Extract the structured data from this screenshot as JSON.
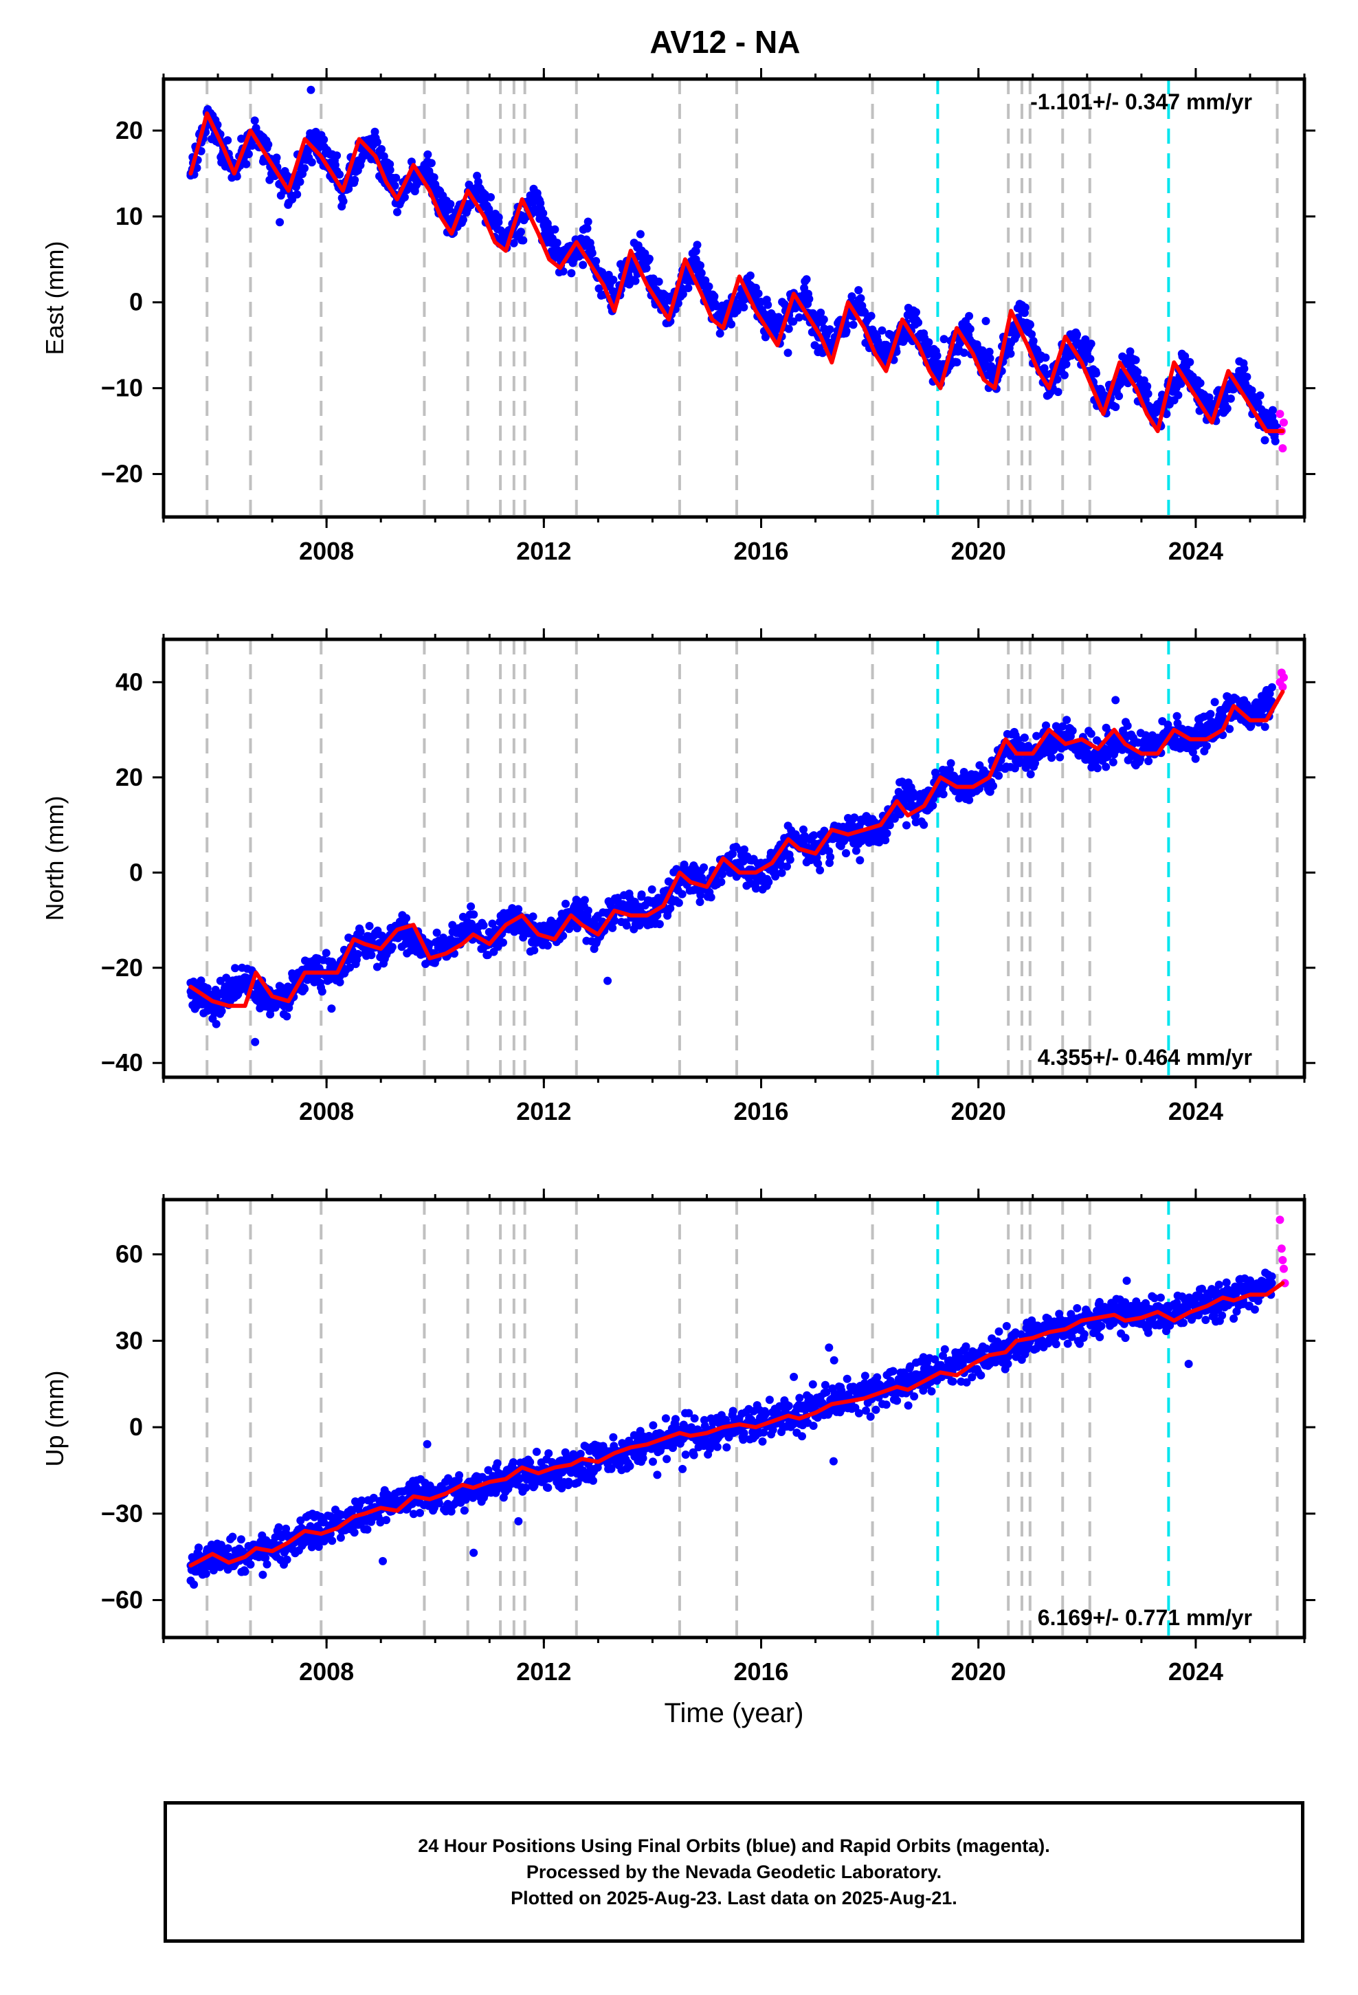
{
  "figure": {
    "title": "AV12 - NA",
    "xlabel": "Time (year)",
    "caption": [
      "24 Hour Positions Using Final Orbits (blue) and Rapid Orbits (magenta).",
      "Processed by the Nevada Geodetic Laboratory.",
      "Plotted on 2025-Aug-23. Last data on 2025-Aug-21."
    ]
  },
  "colors": {
    "final_orbits": "#0000ff",
    "rapid_orbits": "#ff00ff",
    "model_fit": "#ff0000",
    "event_line": "#c0c0c0",
    "equipment_line": "#00e5ee"
  },
  "chart_data": [
    {
      "type": "scatter",
      "ylabel": "East (mm)",
      "xlim": [
        2005.0,
        2026.0
      ],
      "ylim": [
        -25,
        26
      ],
      "xticks": [
        2008,
        2012,
        2016,
        2020,
        2024
      ],
      "yticks": [
        -20,
        -10,
        0,
        10,
        20
      ],
      "ytick_labels": [
        "−20",
        "−10",
        "0",
        "10",
        "20"
      ],
      "rate_label": "-1.101+/- 0.347 mm/yr",
      "rate_position": "top-right",
      "gray_event_lines": [
        2005.8,
        2006.6,
        2007.9,
        2009.8,
        2010.6,
        2011.2,
        2011.45,
        2011.65,
        2012.6,
        2014.5,
        2015.55,
        2018.05,
        2020.55,
        2020.8,
        2020.95,
        2021.55,
        2022.05,
        2025.5
      ],
      "cyan_event_lines": [
        2019.25,
        2023.5
      ],
      "series": [
        {
          "name": "Final Orbits (blue)",
          "x": [
            2005.5,
            2005.7,
            2005.8,
            2006.1,
            2006.3,
            2006.7,
            2006.9,
            2007.3,
            2007.8,
            2008.1,
            2008.3,
            2008.8,
            2009.1,
            2009.3,
            2009.8,
            2010.0,
            2010.3,
            2010.8,
            2011.0,
            2011.3,
            2011.8,
            2012.0,
            2012.3,
            2012.8,
            2013.0,
            2013.3,
            2013.8,
            2014.0,
            2014.3,
            2014.8,
            2015.0,
            2015.3,
            2015.8,
            2016.0,
            2016.3,
            2016.8,
            2017.0,
            2017.3,
            2017.8,
            2018.0,
            2018.3,
            2018.8,
            2019.0,
            2019.3,
            2019.8,
            2020.0,
            2020.3,
            2020.8,
            2021.0,
            2021.3,
            2021.8,
            2022.0,
            2022.3,
            2022.8,
            2023.0,
            2023.3,
            2023.8,
            2024.0,
            2024.3,
            2024.8,
            2025.0,
            2025.3,
            2025.5
          ],
          "y": [
            15,
            19,
            22,
            18,
            15,
            20,
            17,
            13,
            19,
            16,
            13,
            19,
            15,
            12,
            16,
            13,
            9,
            13,
            10,
            7,
            12,
            9,
            5,
            7,
            3,
            1,
            6,
            2,
            -1,
            5,
            1,
            -2,
            2,
            -1,
            -3,
            1,
            -3,
            -5,
            0,
            -4,
            -6,
            -2,
            -5,
            -8,
            -3,
            -6,
            -9,
            -1,
            -5,
            -10,
            -4,
            -6,
            -12,
            -7,
            -10,
            -14,
            -7,
            -10,
            -13,
            -8,
            -11,
            -14,
            -15
          ]
        },
        {
          "name": "Rapid Orbits (magenta)",
          "x": [
            2025.55,
            2025.58,
            2025.6,
            2025.62
          ],
          "y": [
            -13,
            -15,
            -17,
            -14
          ]
        },
        {
          "name": "Model fit",
          "x": [
            2005.5,
            2005.8,
            2006.1,
            2006.3,
            2006.6,
            2006.9,
            2007.1,
            2007.3,
            2007.6,
            2007.9,
            2008.1,
            2008.3,
            2008.6,
            2008.9,
            2009.1,
            2009.3,
            2009.6,
            2009.9,
            2010.1,
            2010.3,
            2010.6,
            2010.9,
            2011.1,
            2011.3,
            2011.6,
            2011.9,
            2012.1,
            2012.3,
            2012.6,
            2012.9,
            2013.1,
            2013.3,
            2013.6,
            2013.9,
            2014.1,
            2014.3,
            2014.6,
            2014.9,
            2015.1,
            2015.3,
            2015.6,
            2015.9,
            2016.1,
            2016.3,
            2016.6,
            2016.9,
            2017.1,
            2017.3,
            2017.6,
            2017.9,
            2018.1,
            2018.3,
            2018.6,
            2018.9,
            2019.1,
            2019.3,
            2019.6,
            2019.9,
            2020.1,
            2020.3,
            2020.6,
            2020.9,
            2021.1,
            2021.3,
            2021.6,
            2021.9,
            2022.1,
            2022.3,
            2022.6,
            2022.9,
            2023.1,
            2023.3,
            2023.6,
            2023.9,
            2024.1,
            2024.3,
            2024.6,
            2024.9,
            2025.1,
            2025.3,
            2025.6
          ],
          "y": [
            15,
            22,
            18,
            15,
            20,
            17,
            15,
            13,
            19,
            17,
            15,
            13,
            19,
            17,
            14,
            12,
            16,
            13,
            10,
            8,
            13,
            10,
            7,
            6,
            12,
            8,
            5,
            4,
            7,
            4,
            2,
            -1,
            6,
            2,
            0,
            -2,
            5,
            1,
            -2,
            -3,
            3,
            -1,
            -3,
            -5,
            1,
            -2,
            -4,
            -7,
            0,
            -3,
            -6,
            -8,
            -2,
            -5,
            -8,
            -10,
            -3,
            -6,
            -9,
            -10,
            -1,
            -5,
            -8,
            -10,
            -4,
            -7,
            -10,
            -13,
            -7,
            -10,
            -13,
            -15,
            -7,
            -10,
            -12,
            -14,
            -8,
            -11,
            -13,
            -15,
            -15
          ]
        }
      ]
    },
    {
      "type": "scatter",
      "ylabel": "North (mm)",
      "xlim": [
        2005.0,
        2026.0
      ],
      "ylim": [
        -43,
        49
      ],
      "xticks": [
        2008,
        2012,
        2016,
        2020,
        2024
      ],
      "yticks": [
        -40,
        -20,
        0,
        20,
        40
      ],
      "ytick_labels": [
        "−40",
        "−20",
        "0",
        "20",
        "40"
      ],
      "rate_label": "4.355+/- 0.464 mm/yr",
      "rate_position": "bottom-right",
      "gray_event_lines": [
        2005.8,
        2006.6,
        2007.9,
        2009.8,
        2010.6,
        2011.2,
        2011.45,
        2011.65,
        2012.6,
        2014.5,
        2015.55,
        2018.05,
        2020.55,
        2020.8,
        2020.95,
        2021.55,
        2022.05,
        2025.5
      ],
      "cyan_event_lines": [
        2019.25,
        2023.5
      ],
      "series": [
        {
          "name": "Final Orbits (blue)",
          "x": [
            2005.5,
            2006.0,
            2006.5,
            2006.8,
            2007.2,
            2007.7,
            2008.2,
            2008.6,
            2009.0,
            2009.4,
            2009.8,
            2010.2,
            2010.6,
            2011.0,
            2011.4,
            2011.8,
            2012.2,
            2012.6,
            2013.0,
            2013.4,
            2013.8,
            2014.2,
            2014.6,
            2015.0,
            2015.4,
            2015.8,
            2016.2,
            2016.6,
            2017.0,
            2017.4,
            2017.8,
            2018.2,
            2018.6,
            2019.0,
            2019.4,
            2019.8,
            2020.2,
            2020.6,
            2021.0,
            2021.4,
            2021.8,
            2022.2,
            2022.6,
            2023.0,
            2023.4,
            2023.8,
            2024.2,
            2024.6,
            2025.0,
            2025.4
          ],
          "y": [
            -25,
            -28,
            -22,
            -26,
            -27,
            -20,
            -22,
            -14,
            -16,
            -12,
            -17,
            -16,
            -11,
            -15,
            -9,
            -13,
            -12,
            -8,
            -13,
            -7,
            -9,
            -7,
            0,
            -3,
            3,
            0,
            1,
            7,
            4,
            8,
            9,
            9,
            16,
            14,
            20,
            18,
            19,
            27,
            24,
            29,
            27,
            24,
            28,
            25,
            29,
            28,
            29,
            35,
            32,
            36
          ]
        },
        {
          "name": "Rapid Orbits (magenta)",
          "x": [
            2025.55,
            2025.58,
            2025.6,
            2025.62
          ],
          "y": [
            40,
            42,
            39,
            41
          ]
        },
        {
          "name": "Model fit",
          "x": [
            2005.5,
            2005.9,
            2006.2,
            2006.5,
            2006.7,
            2007.0,
            2007.3,
            2007.6,
            2007.9,
            2008.2,
            2008.5,
            2008.7,
            2009.0,
            2009.3,
            2009.6,
            2009.9,
            2010.2,
            2010.5,
            2010.7,
            2011.0,
            2011.3,
            2011.6,
            2011.9,
            2012.2,
            2012.5,
            2012.7,
            2013.0,
            2013.3,
            2013.6,
            2013.9,
            2014.2,
            2014.5,
            2014.7,
            2015.0,
            2015.3,
            2015.6,
            2015.9,
            2016.2,
            2016.5,
            2016.7,
            2017.0,
            2017.3,
            2017.6,
            2017.9,
            2018.2,
            2018.5,
            2018.7,
            2019.0,
            2019.3,
            2019.6,
            2019.9,
            2020.2,
            2020.5,
            2020.7,
            2021.0,
            2021.3,
            2021.6,
            2021.9,
            2022.2,
            2022.5,
            2022.7,
            2023.0,
            2023.3,
            2023.6,
            2023.9,
            2024.2,
            2024.5,
            2024.7,
            2025.0,
            2025.3,
            2025.6
          ],
          "y": [
            -24,
            -27,
            -28,
            -28,
            -21,
            -26,
            -27,
            -21,
            -21,
            -21,
            -14,
            -15,
            -16,
            -12,
            -11,
            -18,
            -17,
            -15,
            -13,
            -15,
            -11,
            -9,
            -13,
            -14,
            -9,
            -11,
            -13,
            -8,
            -9,
            -9,
            -7,
            0,
            -2,
            -3,
            3,
            0,
            0,
            2,
            7,
            5,
            4,
            9,
            8,
            9,
            10,
            15,
            12,
            14,
            20,
            18,
            18,
            20,
            28,
            25,
            25,
            30,
            27,
            28,
            26,
            30,
            27,
            25,
            25,
            30,
            28,
            28,
            30,
            35,
            32,
            32,
            38
          ]
        }
      ]
    },
    {
      "type": "scatter",
      "ylabel": "Up (mm)",
      "xlim": [
        2005.0,
        2026.0
      ],
      "ylim": [
        -73,
        79
      ],
      "xticks": [
        2008,
        2012,
        2016,
        2020,
        2024
      ],
      "yticks": [
        -60,
        -30,
        0,
        30,
        60
      ],
      "ytick_labels": [
        "−60",
        "−30",
        "0",
        "30",
        "60"
      ],
      "rate_label": "6.169+/- 0.771 mm/yr",
      "rate_position": "bottom-right",
      "gray_event_lines": [
        2005.8,
        2006.6,
        2007.9,
        2009.8,
        2010.6,
        2011.2,
        2011.45,
        2011.65,
        2012.6,
        2014.5,
        2015.55,
        2018.05,
        2020.55,
        2020.8,
        2020.95,
        2021.55,
        2022.05,
        2025.5
      ],
      "cyan_event_lines": [
        2019.25,
        2023.5
      ],
      "series": [
        {
          "name": "Final Orbits (blue)",
          "x": [
            2005.5,
            2006.0,
            2006.5,
            2007.0,
            2007.5,
            2008.0,
            2008.5,
            2009.0,
            2009.5,
            2010.0,
            2010.5,
            2011.0,
            2011.5,
            2012.0,
            2012.5,
            2013.0,
            2013.5,
            2014.0,
            2014.5,
            2015.0,
            2015.5,
            2016.0,
            2016.5,
            2017.0,
            2017.5,
            2018.0,
            2018.5,
            2019.0,
            2019.5,
            2020.0,
            2020.5,
            2021.0,
            2021.5,
            2022.0,
            2022.5,
            2023.0,
            2023.5,
            2024.0,
            2024.5,
            2025.0,
            2025.4
          ],
          "y": [
            -48,
            -45,
            -44,
            -42,
            -38,
            -36,
            -32,
            -28,
            -25,
            -24,
            -22,
            -20,
            -17,
            -16,
            -14,
            -12,
            -9,
            -6,
            -3,
            -2,
            0,
            1,
            3,
            6,
            9,
            12,
            15,
            18,
            21,
            24,
            28,
            31,
            34,
            37,
            38,
            39,
            39,
            41,
            44,
            46,
            50
          ]
        },
        {
          "name": "Rapid Orbits (magenta)",
          "x": [
            2025.55,
            2025.58,
            2025.6,
            2025.62,
            2025.64
          ],
          "y": [
            72,
            62,
            58,
            55,
            50
          ]
        },
        {
          "name": "Model fit",
          "x": [
            2005.5,
            2005.9,
            2006.2,
            2006.5,
            2006.7,
            2007.0,
            2007.3,
            2007.6,
            2007.9,
            2008.2,
            2008.5,
            2008.7,
            2009.0,
            2009.3,
            2009.6,
            2009.9,
            2010.2,
            2010.5,
            2010.7,
            2011.0,
            2011.3,
            2011.6,
            2011.9,
            2012.2,
            2012.5,
            2012.7,
            2013.0,
            2013.3,
            2013.6,
            2013.9,
            2014.2,
            2014.5,
            2014.7,
            2015.0,
            2015.3,
            2015.6,
            2015.9,
            2016.2,
            2016.5,
            2016.7,
            2017.0,
            2017.3,
            2017.6,
            2017.9,
            2018.2,
            2018.5,
            2018.7,
            2019.0,
            2019.3,
            2019.6,
            2019.9,
            2020.2,
            2020.5,
            2020.7,
            2021.0,
            2021.3,
            2021.6,
            2021.9,
            2022.2,
            2022.5,
            2022.7,
            2023.0,
            2023.3,
            2023.6,
            2023.9,
            2024.2,
            2024.5,
            2024.7,
            2025.0,
            2025.3,
            2025.6
          ],
          "y": [
            -48,
            -44,
            -47,
            -45,
            -42,
            -43,
            -40,
            -36,
            -37,
            -35,
            -31,
            -30,
            -28,
            -29,
            -24,
            -25,
            -23,
            -20,
            -21,
            -19,
            -18,
            -14,
            -16,
            -14,
            -13,
            -11,
            -12,
            -9,
            -7,
            -6,
            -4,
            -2,
            -3,
            -2,
            0,
            1,
            0,
            2,
            4,
            3,
            5,
            8,
            9,
            10,
            12,
            14,
            13,
            16,
            19,
            18,
            22,
            25,
            26,
            30,
            31,
            33,
            34,
            37,
            38,
            39,
            37,
            38,
            40,
            37,
            40,
            42,
            45,
            44,
            46,
            46,
            50
          ]
        }
      ]
    }
  ]
}
